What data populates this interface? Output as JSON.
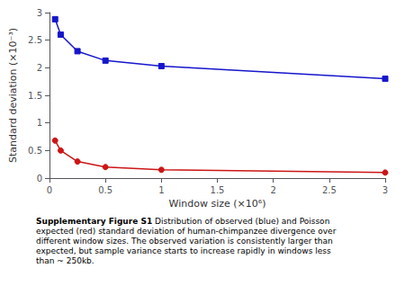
{
  "chart_data": {
    "type": "line",
    "xlabel": "Window size (×10⁶)",
    "ylabel": "Standard deviation (×10⁻³)",
    "series": [
      {
        "color": "#1515CC",
        "marker": "square",
        "x": [
          0.05,
          0.1,
          0.25,
          0.5,
          1.0,
          3.0
        ],
        "values": [
          2.88,
          2.6,
          2.3,
          2.13,
          2.03,
          1.8
        ]
      },
      {
        "color": "#CC1515",
        "marker": "circle",
        "x": [
          0.05,
          0.1,
          0.25,
          0.5,
          1.0,
          3.0
        ],
        "values": [
          0.68,
          0.5,
          0.3,
          0.2,
          0.15,
          0.1
        ]
      }
    ],
    "xlim": [
      0,
      3.0
    ],
    "ylim": [
      0,
      3.0
    ],
    "xticks": [
      0,
      0.5,
      1,
      1.5,
      2,
      2.5,
      3
    ],
    "yticks": [
      0,
      0.5,
      1,
      1.5,
      2,
      2.5,
      3
    ],
    "grid": false,
    "annotations": [
      "Supplementary Figure S1",
      " Distribution of observed (blue) and Poisson\nexpected (red) standard deviation of human-chimpanzee divergence over\ndifferent window sizes. The observed variation is consistently larger than\nexpected, but sample variance starts to increase rapidly in windows less\nthan ~ 250kb."
    ]
  }
}
